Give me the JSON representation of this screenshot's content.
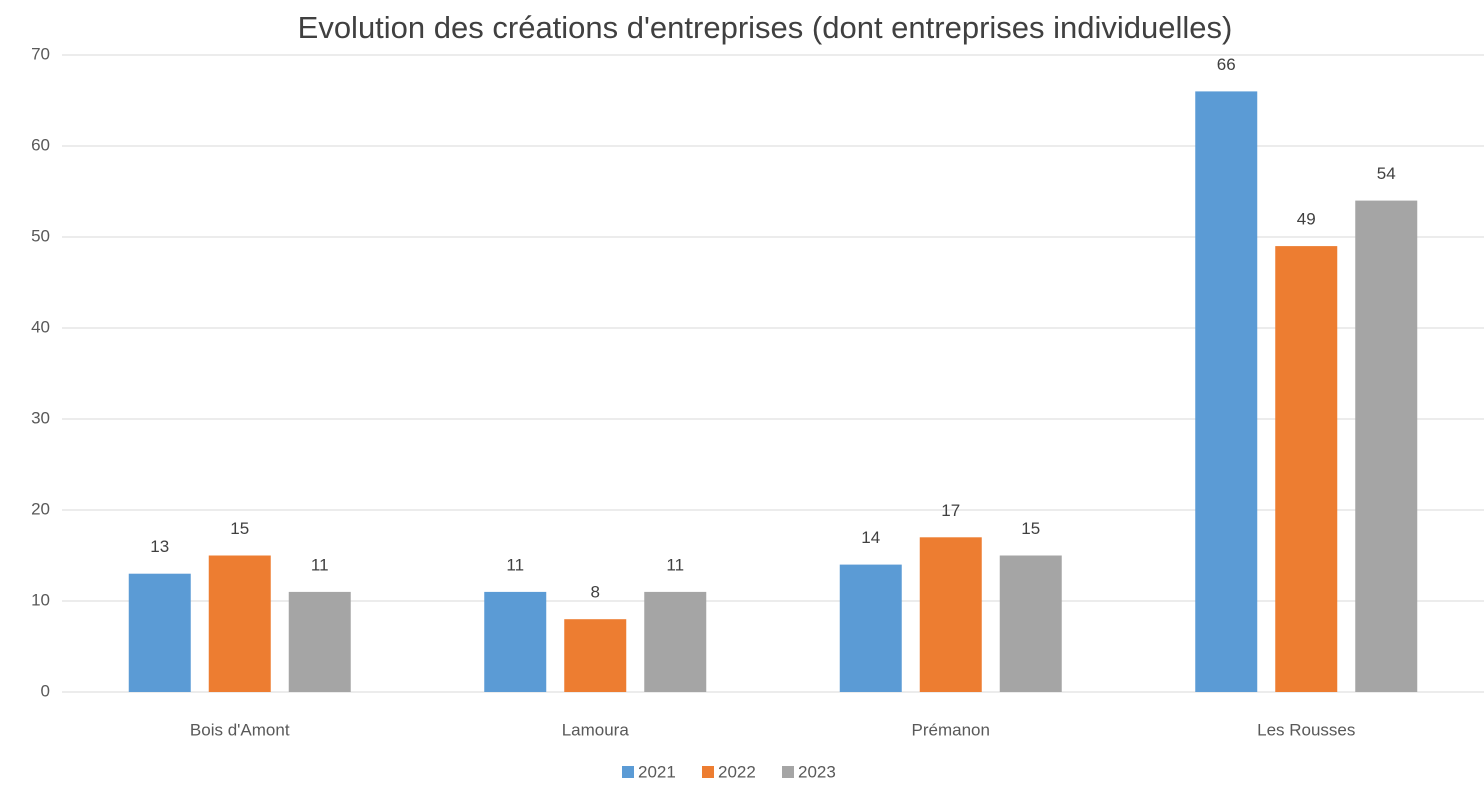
{
  "chart_data": {
    "type": "bar",
    "title": "Evolution des créations d'entreprises (dont entreprises individuelles)",
    "categories": [
      "Bois d'Amont",
      "Lamoura",
      "Prémanon",
      "Les Rousses"
    ],
    "series": [
      {
        "name": "2021",
        "color": "#5b9bd5",
        "values": [
          13,
          11,
          14,
          66
        ]
      },
      {
        "name": "2022",
        "color": "#ed7d31",
        "values": [
          15,
          8,
          17,
          49
        ]
      },
      {
        "name": "2023",
        "color": "#a5a5a5",
        "values": [
          11,
          11,
          15,
          54
        ]
      }
    ],
    "ylim": [
      0,
      70
    ],
    "yticks": [
      0,
      10,
      20,
      30,
      40,
      50,
      60,
      70
    ],
    "grid": true,
    "legend": "bottom"
  }
}
